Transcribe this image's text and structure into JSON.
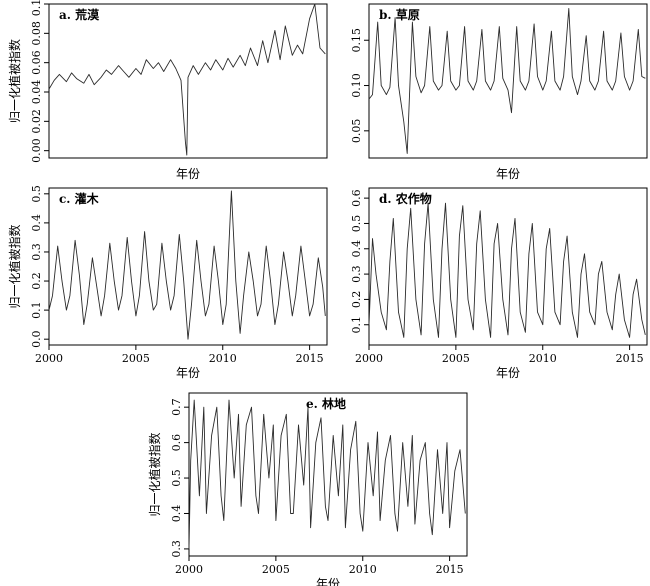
{
  "figure": {
    "ylabel": "归一化植被指数",
    "xlabel": "年份"
  },
  "chart_data": [
    {
      "id": "a",
      "type": "line",
      "panel_label": "a. 荒漠",
      "xlim": [
        2000,
        2016
      ],
      "ylim": [
        -0.005,
        0.1
      ],
      "yticks": [
        0.0,
        0.02,
        0.04,
        0.06,
        0.08,
        0.1
      ],
      "ytick_labels": [
        "0.00",
        "0.02",
        "0.04",
        "0.06",
        "0.08",
        "0.10"
      ],
      "xticks": [],
      "x_axis_title": "年份",
      "y_axis_title": "归一化植被指数",
      "series": [
        {
          "x": [
            2000.0,
            2000.3,
            2000.6,
            2001.0,
            2001.3,
            2001.6,
            2002.0,
            2002.3,
            2002.6,
            2003.0,
            2003.3,
            2003.6,
            2004.0,
            2004.3,
            2004.6,
            2005.0,
            2005.3,
            2005.6,
            2006.0,
            2006.3,
            2006.6,
            2007.0,
            2007.3,
            2007.6,
            2007.85,
            2007.93,
            2008.0,
            2008.3,
            2008.6,
            2009.0,
            2009.3,
            2009.6,
            2010.0,
            2010.3,
            2010.6,
            2011.0,
            2011.3,
            2011.6,
            2012.0,
            2012.3,
            2012.6,
            2013.0,
            2013.3,
            2013.6,
            2014.0,
            2014.3,
            2014.6,
            2015.0,
            2015.3,
            2015.6,
            2015.9
          ],
          "values": [
            0.042,
            0.048,
            0.052,
            0.047,
            0.053,
            0.049,
            0.046,
            0.052,
            0.045,
            0.05,
            0.055,
            0.052,
            0.058,
            0.054,
            0.05,
            0.056,
            0.052,
            0.062,
            0.056,
            0.06,
            0.054,
            0.062,
            0.056,
            0.048,
            0.006,
            -0.003,
            0.05,
            0.058,
            0.052,
            0.06,
            0.055,
            0.062,
            0.055,
            0.063,
            0.057,
            0.065,
            0.058,
            0.07,
            0.058,
            0.075,
            0.06,
            0.082,
            0.062,
            0.085,
            0.065,
            0.072,
            0.066,
            0.09,
            0.1,
            0.07,
            0.066
          ]
        }
      ]
    },
    {
      "id": "b",
      "type": "line",
      "panel_label": "b. 草原",
      "xlim": [
        2000,
        2016
      ],
      "ylim": [
        0.02,
        0.19
      ],
      "yticks": [
        0.05,
        0.1,
        0.15
      ],
      "ytick_labels": [
        "0.05",
        "0.10",
        "0.15"
      ],
      "xticks": [],
      "x_axis_title": "年份",
      "y_axis_title": "",
      "series": [
        {
          "x": [
            2000.0,
            2000.2,
            2000.5,
            2000.7,
            2001.0,
            2001.2,
            2001.5,
            2001.7,
            2002.0,
            2002.2,
            2002.5,
            2002.7,
            2003.0,
            2003.2,
            2003.5,
            2003.7,
            2004.0,
            2004.2,
            2004.5,
            2004.7,
            2005.0,
            2005.2,
            2005.5,
            2005.7,
            2006.0,
            2006.2,
            2006.5,
            2006.7,
            2007.0,
            2007.2,
            2007.5,
            2007.7,
            2008.0,
            2008.2,
            2008.5,
            2008.7,
            2009.0,
            2009.2,
            2009.5,
            2009.7,
            2010.0,
            2010.2,
            2010.5,
            2010.7,
            2011.0,
            2011.2,
            2011.5,
            2011.7,
            2012.0,
            2012.2,
            2012.5,
            2012.7,
            2013.0,
            2013.2,
            2013.5,
            2013.7,
            2014.0,
            2014.2,
            2014.5,
            2014.7,
            2015.0,
            2015.2,
            2015.5,
            2015.7,
            2015.9
          ],
          "values": [
            0.085,
            0.09,
            0.17,
            0.1,
            0.09,
            0.098,
            0.175,
            0.1,
            0.06,
            0.025,
            0.17,
            0.11,
            0.092,
            0.1,
            0.165,
            0.105,
            0.095,
            0.1,
            0.16,
            0.105,
            0.095,
            0.1,
            0.165,
            0.105,
            0.095,
            0.105,
            0.162,
            0.105,
            0.095,
            0.105,
            0.165,
            0.108,
            0.095,
            0.07,
            0.165,
            0.105,
            0.095,
            0.105,
            0.168,
            0.11,
            0.095,
            0.105,
            0.16,
            0.105,
            0.095,
            0.11,
            0.185,
            0.11,
            0.09,
            0.105,
            0.155,
            0.105,
            0.095,
            0.105,
            0.16,
            0.105,
            0.095,
            0.105,
            0.158,
            0.11,
            0.095,
            0.105,
            0.162,
            0.11,
            0.108
          ]
        }
      ]
    },
    {
      "id": "c",
      "type": "line",
      "panel_label": "c. 灌木",
      "xlim": [
        2000,
        2016
      ],
      "ylim": [
        -0.02,
        0.52
      ],
      "yticks": [
        0.0,
        0.1,
        0.2,
        0.3,
        0.4,
        0.5
      ],
      "ytick_labels": [
        "0.0",
        "0.1",
        "0.2",
        "0.3",
        "0.4",
        "0.5"
      ],
      "xticks": [
        2000,
        2005,
        2010,
        2015
      ],
      "xtick_labels": [
        "2000",
        "2005",
        "2010",
        "2015"
      ],
      "x_axis_title": "年份",
      "y_axis_title": "归一化植被指数",
      "series": [
        {
          "x": [
            2000.0,
            2000.2,
            2000.5,
            2000.75,
            2001.0,
            2001.2,
            2001.5,
            2001.75,
            2002.0,
            2002.2,
            2002.5,
            2002.75,
            2003.0,
            2003.2,
            2003.5,
            2003.75,
            2004.0,
            2004.2,
            2004.5,
            2004.75,
            2005.0,
            2005.2,
            2005.5,
            2005.75,
            2006.0,
            2006.2,
            2006.5,
            2006.75,
            2007.0,
            2007.2,
            2007.5,
            2007.75,
            2008.0,
            2008.2,
            2008.5,
            2008.75,
            2009.0,
            2009.2,
            2009.5,
            2009.75,
            2010.0,
            2010.2,
            2010.5,
            2010.75,
            2011.0,
            2011.2,
            2011.5,
            2011.75,
            2012.0,
            2012.2,
            2012.5,
            2012.75,
            2013.0,
            2013.2,
            2013.5,
            2013.75,
            2014.0,
            2014.2,
            2014.5,
            2014.75,
            2015.0,
            2015.2,
            2015.5,
            2015.75,
            2015.9
          ],
          "values": [
            0.1,
            0.15,
            0.32,
            0.2,
            0.1,
            0.15,
            0.34,
            0.22,
            0.05,
            0.12,
            0.28,
            0.18,
            0.08,
            0.15,
            0.33,
            0.2,
            0.1,
            0.15,
            0.35,
            0.2,
            0.08,
            0.15,
            0.37,
            0.2,
            0.1,
            0.12,
            0.33,
            0.2,
            0.1,
            0.15,
            0.36,
            0.2,
            0.0,
            0.12,
            0.34,
            0.2,
            0.08,
            0.12,
            0.32,
            0.2,
            0.05,
            0.12,
            0.51,
            0.2,
            0.02,
            0.15,
            0.3,
            0.2,
            0.08,
            0.12,
            0.32,
            0.2,
            0.05,
            0.12,
            0.3,
            0.2,
            0.08,
            0.15,
            0.32,
            0.2,
            0.08,
            0.12,
            0.28,
            0.18,
            0.08
          ]
        }
      ]
    },
    {
      "id": "d",
      "type": "line",
      "panel_label": "d. 农作物",
      "xlim": [
        2000,
        2016
      ],
      "ylim": [
        0.02,
        0.64
      ],
      "yticks": [
        0.1,
        0.2,
        0.3,
        0.4,
        0.5,
        0.6
      ],
      "ytick_labels": [
        "0.1",
        "0.2",
        "0.3",
        "0.4",
        "0.5",
        "0.6"
      ],
      "xticks": [
        2000,
        2005,
        2010,
        2015
      ],
      "xtick_labels": [
        "2000",
        "2005",
        "2010",
        "2015"
      ],
      "x_axis_title": "年份",
      "y_axis_title": "",
      "series": [
        {
          "x": [
            2000.0,
            2000.2,
            2000.4,
            2000.7,
            2001.0,
            2001.2,
            2001.4,
            2001.7,
            2002.0,
            2002.2,
            2002.4,
            2002.7,
            2003.0,
            2003.2,
            2003.4,
            2003.7,
            2004.0,
            2004.2,
            2004.4,
            2004.7,
            2005.0,
            2005.2,
            2005.4,
            2005.7,
            2006.0,
            2006.2,
            2006.4,
            2006.7,
            2007.0,
            2007.2,
            2007.4,
            2007.7,
            2008.0,
            2008.2,
            2008.4,
            2008.7,
            2009.0,
            2009.2,
            2009.4,
            2009.7,
            2010.0,
            2010.2,
            2010.4,
            2010.7,
            2011.0,
            2011.2,
            2011.4,
            2011.7,
            2012.0,
            2012.2,
            2012.4,
            2012.7,
            2013.0,
            2013.2,
            2013.4,
            2013.7,
            2014.0,
            2014.2,
            2014.4,
            2014.7,
            2015.0,
            2015.2,
            2015.4,
            2015.7,
            2015.9
          ],
          "values": [
            0.1,
            0.44,
            0.3,
            0.15,
            0.08,
            0.35,
            0.52,
            0.15,
            0.05,
            0.4,
            0.56,
            0.2,
            0.06,
            0.42,
            0.58,
            0.2,
            0.05,
            0.4,
            0.58,
            0.2,
            0.05,
            0.45,
            0.57,
            0.2,
            0.08,
            0.42,
            0.55,
            0.2,
            0.05,
            0.42,
            0.5,
            0.2,
            0.06,
            0.4,
            0.52,
            0.15,
            0.07,
            0.38,
            0.5,
            0.15,
            0.1,
            0.4,
            0.48,
            0.15,
            0.1,
            0.35,
            0.45,
            0.15,
            0.05,
            0.3,
            0.38,
            0.15,
            0.1,
            0.3,
            0.35,
            0.15,
            0.08,
            0.22,
            0.3,
            0.12,
            0.05,
            0.22,
            0.28,
            0.12,
            0.06
          ]
        }
      ]
    },
    {
      "id": "e",
      "type": "line",
      "panel_label": "e. 林地",
      "xlim": [
        2000,
        2016
      ],
      "ylim": [
        0.28,
        0.74
      ],
      "yticks": [
        0.3,
        0.4,
        0.5,
        0.6,
        0.7
      ],
      "ytick_labels": [
        "0.3",
        "0.4",
        "0.5",
        "0.6",
        "0.7"
      ],
      "xticks": [
        2000,
        2005,
        2010,
        2015
      ],
      "xtick_labels": [
        "2000",
        "2005",
        "2010",
        "2015"
      ],
      "x_axis_title": "年份",
      "y_axis_title": "归一化植被指数",
      "series": [
        {
          "x": [
            2000.0,
            2000.1,
            2000.3,
            2000.6,
            2000.85,
            2001.0,
            2001.3,
            2001.6,
            2001.85,
            2002.0,
            2002.3,
            2002.6,
            2002.85,
            2003.0,
            2003.3,
            2003.6,
            2003.85,
            2004.0,
            2004.3,
            2004.6,
            2004.85,
            2005.0,
            2005.3,
            2005.6,
            2005.85,
            2006.0,
            2006.3,
            2006.6,
            2006.85,
            2007.0,
            2007.3,
            2007.6,
            2007.85,
            2008.0,
            2008.3,
            2008.6,
            2008.85,
            2009.0,
            2009.3,
            2009.6,
            2009.85,
            2010.0,
            2010.3,
            2010.6,
            2010.85,
            2011.0,
            2011.3,
            2011.6,
            2011.85,
            2012.0,
            2012.3,
            2012.6,
            2012.85,
            2013.0,
            2013.3,
            2013.6,
            2013.85,
            2014.0,
            2014.3,
            2014.6,
            2014.85,
            2015.0,
            2015.3,
            2015.6,
            2015.9
          ],
          "values": [
            0.3,
            0.55,
            0.72,
            0.45,
            0.7,
            0.4,
            0.62,
            0.7,
            0.45,
            0.38,
            0.72,
            0.5,
            0.68,
            0.42,
            0.65,
            0.7,
            0.45,
            0.4,
            0.68,
            0.5,
            0.65,
            0.38,
            0.62,
            0.68,
            0.4,
            0.4,
            0.65,
            0.48,
            0.7,
            0.36,
            0.6,
            0.67,
            0.42,
            0.38,
            0.62,
            0.45,
            0.65,
            0.36,
            0.58,
            0.66,
            0.4,
            0.35,
            0.6,
            0.45,
            0.63,
            0.38,
            0.55,
            0.62,
            0.4,
            0.35,
            0.6,
            0.42,
            0.62,
            0.37,
            0.55,
            0.6,
            0.4,
            0.34,
            0.58,
            0.4,
            0.6,
            0.36,
            0.52,
            0.58,
            0.4
          ]
        }
      ]
    }
  ]
}
